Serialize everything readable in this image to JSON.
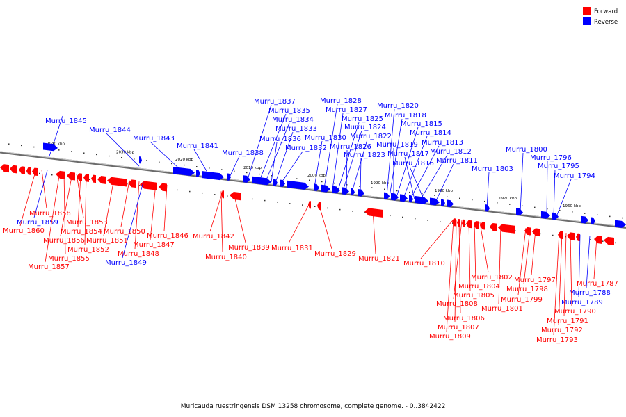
{
  "caption": "Muricauda ruestringensis DSM 13258 chromosome, complete genome. - 0..3842422",
  "legend": [
    {
      "label": "Forward",
      "color": "#ff0000"
    },
    {
      "label": "Reverse",
      "color": "#0000ff"
    }
  ],
  "colors": {
    "forward": "#ff0000",
    "reverse": "#0000ff",
    "axis": "#999999"
  },
  "ticks": [
    "2040 kbp",
    "2030 kbp",
    "2020 kbp",
    "2010 kbp",
    "2000 kbp",
    "1990 kbp",
    "1980 kbp",
    "1970 kbp",
    "1960 kbp"
  ],
  "genes": [
    {
      "label": "Murru_1845",
      "strand": "reverse"
    },
    {
      "label": "Murru_1844",
      "strand": "reverse"
    },
    {
      "label": "Murru_1843",
      "strand": "reverse"
    },
    {
      "label": "Murru_1841",
      "strand": "reverse"
    },
    {
      "label": "Murru_1838",
      "strand": "reverse"
    },
    {
      "label": "Murru_1837",
      "strand": "reverse"
    },
    {
      "label": "Murru_1835",
      "strand": "reverse"
    },
    {
      "label": "Murru_1834",
      "strand": "reverse"
    },
    {
      "label": "Murru_1833",
      "strand": "reverse"
    },
    {
      "label": "Murru_1836",
      "strand": "reverse"
    },
    {
      "label": "Murru_1832",
      "strand": "reverse"
    },
    {
      "label": "Murru_1830",
      "strand": "reverse"
    },
    {
      "label": "Murru_1828",
      "strand": "reverse"
    },
    {
      "label": "Murru_1827",
      "strand": "reverse"
    },
    {
      "label": "Murru_1825",
      "strand": "reverse"
    },
    {
      "label": "Murru_1824",
      "strand": "reverse"
    },
    {
      "label": "Murru_1822",
      "strand": "reverse"
    },
    {
      "label": "Murru_1826",
      "strand": "reverse"
    },
    {
      "label": "Murru_1823",
      "strand": "reverse"
    },
    {
      "label": "Murru_1820",
      "strand": "reverse"
    },
    {
      "label": "Murru_1818",
      "strand": "reverse"
    },
    {
      "label": "Murru_1815",
      "strand": "reverse"
    },
    {
      "label": "Murru_1819",
      "strand": "reverse"
    },
    {
      "label": "Murru_1814",
      "strand": "reverse"
    },
    {
      "label": "Murru_1813",
      "strand": "reverse"
    },
    {
      "label": "Murru_1817",
      "strand": "reverse"
    },
    {
      "label": "Murru_1812",
      "strand": "reverse"
    },
    {
      "label": "Murru_1816",
      "strand": "reverse"
    },
    {
      "label": "Murru_1811",
      "strand": "reverse"
    },
    {
      "label": "Murru_1803",
      "strand": "reverse"
    },
    {
      "label": "Murru_1800",
      "strand": "reverse"
    },
    {
      "label": "Murru_1796",
      "strand": "reverse"
    },
    {
      "label": "Murru_1795",
      "strand": "reverse"
    },
    {
      "label": "Murru_1794",
      "strand": "reverse"
    },
    {
      "label": "Murru_1858",
      "strand": "forward"
    },
    {
      "label": "Murru_1859",
      "strand": "reverse"
    },
    {
      "label": "Murru_1860",
      "strand": "forward"
    },
    {
      "label": "Murru_1853",
      "strand": "forward"
    },
    {
      "label": "Murru_1854",
      "strand": "forward"
    },
    {
      "label": "Murru_1856",
      "strand": "forward"
    },
    {
      "label": "Murru_1852",
      "strand": "forward"
    },
    {
      "label": "Murru_1855",
      "strand": "forward"
    },
    {
      "label": "Murru_1857",
      "strand": "forward"
    },
    {
      "label": "Murru_1850",
      "strand": "forward"
    },
    {
      "label": "Murru_1851",
      "strand": "forward"
    },
    {
      "label": "Murru_1848",
      "strand": "forward"
    },
    {
      "label": "Murru_1849",
      "strand": "reverse"
    },
    {
      "label": "Murru_1846",
      "strand": "forward"
    },
    {
      "label": "Murru_1847",
      "strand": "forward"
    },
    {
      "label": "Murru_1842",
      "strand": "forward"
    },
    {
      "label": "Murru_1839",
      "strand": "forward"
    },
    {
      "label": "Murru_1840",
      "strand": "forward"
    },
    {
      "label": "Murru_1831",
      "strand": "forward"
    },
    {
      "label": "Murru_1829",
      "strand": "forward"
    },
    {
      "label": "Murru_1821",
      "strand": "forward"
    },
    {
      "label": "Murru_1810",
      "strand": "forward"
    },
    {
      "label": "Murru_1802",
      "strand": "forward"
    },
    {
      "label": "Murru_1804",
      "strand": "forward"
    },
    {
      "label": "Murru_1805",
      "strand": "forward"
    },
    {
      "label": "Murru_1808",
      "strand": "forward"
    },
    {
      "label": "Murru_1801",
      "strand": "forward"
    },
    {
      "label": "Murru_1806",
      "strand": "forward"
    },
    {
      "label": "Murru_1807",
      "strand": "forward"
    },
    {
      "label": "Murru_1809",
      "strand": "forward"
    },
    {
      "label": "Murru_1797",
      "strand": "forward"
    },
    {
      "label": "Murru_1798",
      "strand": "forward"
    },
    {
      "label": "Murru_1799",
      "strand": "forward"
    },
    {
      "label": "Murru_1787",
      "strand": "forward"
    },
    {
      "label": "Murru_1788",
      "strand": "reverse"
    },
    {
      "label": "Murru_1789",
      "strand": "reverse"
    },
    {
      "label": "Murru_1790",
      "strand": "forward"
    },
    {
      "label": "Murru_1791",
      "strand": "forward"
    },
    {
      "label": "Murru_1792",
      "strand": "forward"
    },
    {
      "label": "Murru_1793",
      "strand": "forward"
    }
  ]
}
